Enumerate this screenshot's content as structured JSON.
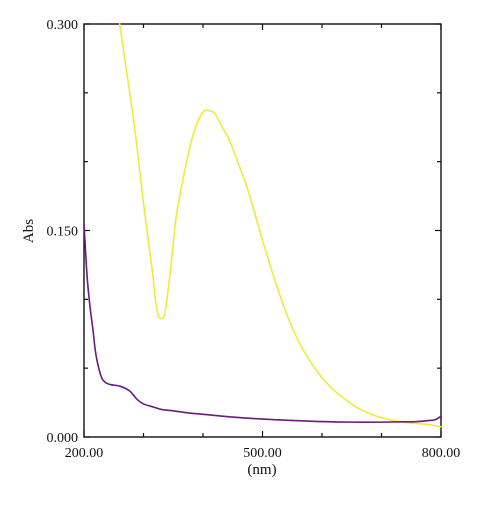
{
  "chart_data": {
    "type": "line",
    "title": "",
    "xlabel": "(nm)",
    "ylabel": "Abs",
    "xlim": [
      200,
      800
    ],
    "ylim": [
      0,
      0.3
    ],
    "x_ticks": [
      {
        "value": 200,
        "label": "200.00"
      },
      {
        "value": 500,
        "label": "500.00"
      },
      {
        "value": 800,
        "label": "800.00"
      }
    ],
    "y_ticks": [
      {
        "value": 0,
        "label": "0.000"
      },
      {
        "value": 0.15,
        "label": "0.150"
      },
      {
        "value": 0.3,
        "label": "0.300"
      }
    ],
    "x_minor_ticks": [
      300,
      400,
      600,
      700
    ],
    "y_minor_ticks": [
      0.05,
      0.1,
      0.2,
      0.25
    ],
    "grid": false,
    "series": [
      {
        "color": "#f2e93a",
        "x": [
          260,
          270,
          285,
          300,
          315,
          320,
          325,
          330,
          333,
          337,
          345,
          355,
          370,
          385,
          400,
          410,
          420,
          430,
          445,
          460,
          475,
          490,
          500,
          520,
          540,
          560,
          580,
          600,
          620,
          640,
          660,
          680,
          700,
          720,
          740,
          760,
          780,
          800
        ],
        "y": [
          0.3,
          0.27,
          0.225,
          0.17,
          0.12,
          0.1,
          0.088,
          0.086,
          0.087,
          0.092,
          0.12,
          0.16,
          0.195,
          0.222,
          0.236,
          0.237,
          0.235,
          0.227,
          0.215,
          0.198,
          0.18,
          0.158,
          0.143,
          0.115,
          0.09,
          0.07,
          0.055,
          0.043,
          0.034,
          0.027,
          0.021,
          0.017,
          0.014,
          0.012,
          0.0105,
          0.0098,
          0.009,
          0.0075
        ]
      },
      {
        "color": "#6a1a7a",
        "x": [
          200,
          205,
          210,
          215,
          220,
          228,
          235,
          245,
          260,
          275,
          282,
          290,
          300,
          315,
          330,
          350,
          375,
          400,
          450,
          500,
          550,
          600,
          650,
          700,
          740,
          760,
          780,
          790,
          800
        ],
        "y": [
          0.155,
          0.118,
          0.095,
          0.078,
          0.06,
          0.045,
          0.04,
          0.038,
          0.037,
          0.034,
          0.031,
          0.027,
          0.024,
          0.022,
          0.02,
          0.019,
          0.0175,
          0.0165,
          0.0145,
          0.013,
          0.012,
          0.0112,
          0.0108,
          0.0108,
          0.011,
          0.0112,
          0.012,
          0.0125,
          0.015
        ]
      }
    ]
  }
}
